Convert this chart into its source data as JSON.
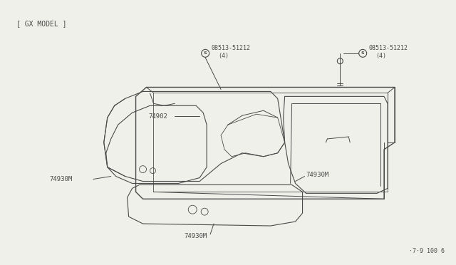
{
  "background_color": "#f0f0eb",
  "line_color": "#4a4a4a",
  "text_color": "#4a4a4a",
  "fig_width": 6.4,
  "fig_height": 3.72,
  "dpi": 100,
  "header_text": "[ GX MODEL ]",
  "footer_text": "·7·9 100 6",
  "labels": {
    "part1_id": "08513-51212",
    "part1_qty": "(4)",
    "part2_id": "08513-51212",
    "part2_qty": "(4)",
    "part3_id": "74902",
    "part4_id": "74930M",
    "part5_id": "74930M",
    "part6_id": "74930M"
  }
}
